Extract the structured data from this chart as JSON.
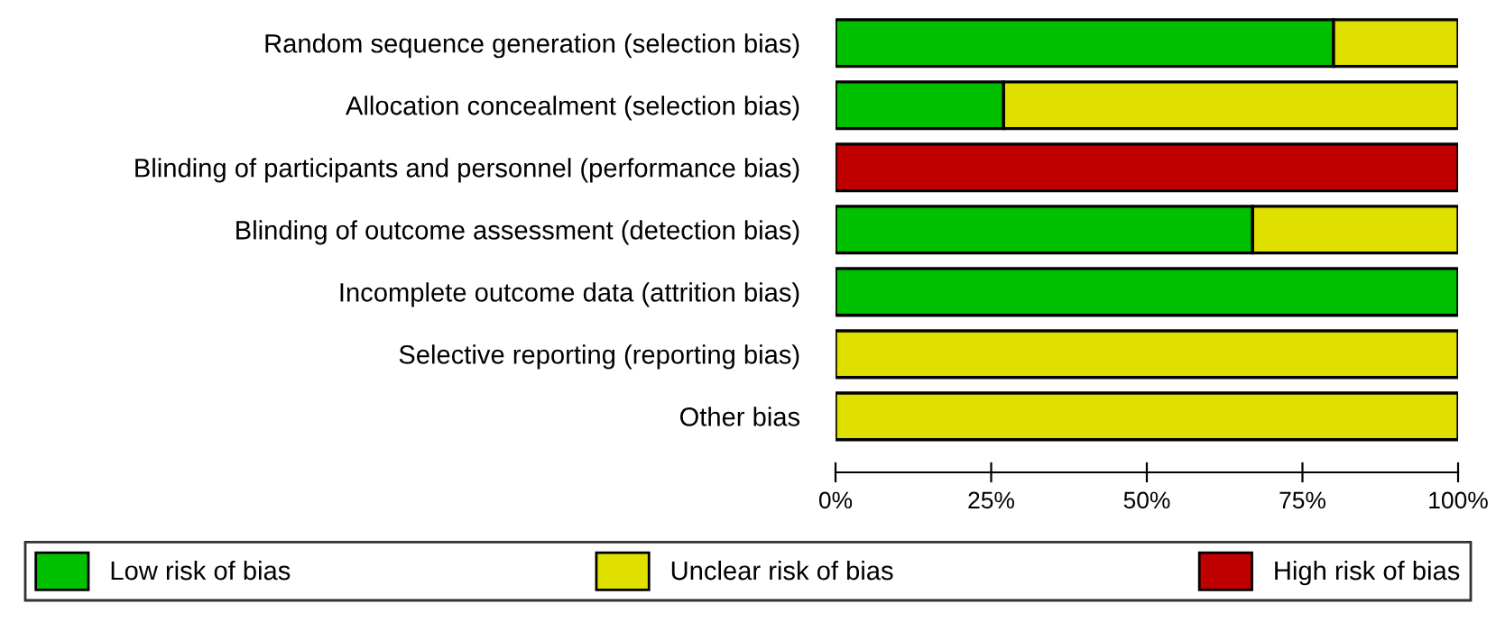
{
  "chart_data": {
    "type": "bar",
    "orientation": "horizontal",
    "stacked": true,
    "categories": [
      "Random sequence generation (selection bias)",
      "Allocation concealment (selection bias)",
      "Blinding of participants and personnel (performance bias)",
      "Blinding of outcome assessment (detection bias)",
      "Incomplete outcome data (attrition bias)",
      "Selective reporting (reporting bias)",
      "Other bias"
    ],
    "series": [
      {
        "name": "Low risk of bias",
        "color": "#00c000",
        "values": [
          80,
          27,
          null,
          67,
          100,
          null,
          null
        ]
      },
      {
        "name": "Unclear risk of bias",
        "color": "#e0e000",
        "values": [
          20,
          73,
          null,
          33,
          null,
          100,
          100
        ]
      },
      {
        "name": "High risk of bias",
        "color": "#c00000",
        "values": [
          null,
          null,
          100,
          null,
          null,
          null,
          null
        ]
      }
    ],
    "xlim": [
      0,
      100
    ],
    "xticks": [
      {
        "value": 0,
        "label": "0%"
      },
      {
        "value": 25,
        "label": "25%"
      },
      {
        "value": 50,
        "label": "50%"
      },
      {
        "value": 75,
        "label": "75%"
      },
      {
        "value": 100,
        "label": "100%"
      }
    ],
    "grid": false,
    "legend": "bottom"
  }
}
